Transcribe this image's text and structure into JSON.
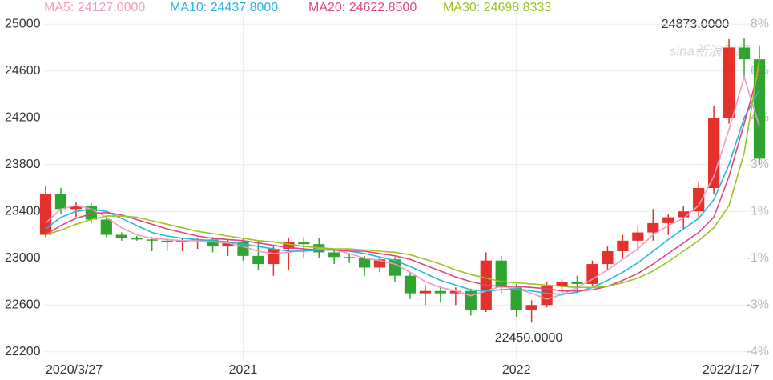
{
  "chart_data": {
    "type": "candlestick",
    "categories": [
      "2020/3/27",
      null,
      null,
      null,
      null,
      null,
      null,
      null,
      null,
      null,
      null,
      null,
      null,
      "2021",
      null,
      null,
      null,
      null,
      null,
      null,
      null,
      null,
      null,
      null,
      null,
      null,
      null,
      null,
      null,
      null,
      null,
      "2022",
      null,
      null,
      null,
      null,
      null,
      null,
      null,
      null,
      null,
      null,
      null,
      null,
      null,
      null,
      null,
      "2022/12/7"
    ],
    "open": [
      23200,
      23550,
      23420,
      23450,
      23330,
      23200,
      23170,
      23160,
      23150,
      23140,
      23150,
      23160,
      23100,
      23140,
      23020,
      22950,
      23080,
      23140,
      23120,
      23050,
      23010,
      23000,
      22920,
      22990,
      22850,
      22700,
      22720,
      22700,
      22720,
      22560,
      22980,
      22750,
      22560,
      22600,
      22760,
      22800,
      22780,
      22950,
      23060,
      23150,
      23220,
      23300,
      23350,
      23400,
      23600,
      24200,
      24800,
      24700
    ],
    "high": [
      23620,
      23600,
      23480,
      23470,
      23350,
      23220,
      23190,
      23180,
      23170,
      23170,
      23170,
      23180,
      23160,
      23170,
      23150,
      23100,
      23170,
      23180,
      23170,
      23080,
      23040,
      23020,
      23000,
      23010,
      22880,
      22760,
      22760,
      22750,
      22740,
      23050,
      23020,
      22780,
      22640,
      22800,
      22820,
      22850,
      22980,
      23100,
      23200,
      23280,
      23420,
      23380,
      23450,
      23650,
      24300,
      24873,
      24880,
      24820
    ],
    "low": [
      23180,
      23380,
      23350,
      23300,
      23180,
      23150,
      23150,
      23060,
      23060,
      23060,
      23080,
      23050,
      23020,
      22980,
      22900,
      22850,
      22900,
      23000,
      23000,
      22950,
      22960,
      22850,
      22880,
      22800,
      22650,
      22600,
      22620,
      22600,
      22510,
      22540,
      22700,
      22500,
      22450,
      22580,
      22680,
      22700,
      22760,
      22900,
      23000,
      23060,
      23150,
      23200,
      23250,
      23350,
      23550,
      24150,
      24550,
      23800
    ],
    "close": [
      23550,
      23420,
      23450,
      23330,
      23200,
      23170,
      23160,
      23150,
      23140,
      23150,
      23160,
      23100,
      23140,
      23020,
      22950,
      23080,
      23140,
      23120,
      23050,
      23010,
      23000,
      22920,
      22990,
      22850,
      22700,
      22720,
      22700,
      22720,
      22560,
      22980,
      22750,
      22560,
      22600,
      22760,
      22800,
      22780,
      22950,
      23060,
      23150,
      23220,
      23300,
      23350,
      23400,
      23600,
      24200,
      24800,
      24700,
      23850
    ],
    "up_color": "#e4312b",
    "down_color": "#2fa52f",
    "series": [
      {
        "name": "MA5: 24127.0000",
        "color": "#f29ac0",
        "values": [
          23300,
          23420,
          23450,
          23420,
          23350,
          23260,
          23200,
          23170,
          23160,
          23150,
          23150,
          23140,
          23130,
          23100,
          23060,
          23040,
          23050,
          23070,
          23080,
          23070,
          23040,
          23000,
          22980,
          22950,
          22880,
          22800,
          22750,
          22720,
          22680,
          22720,
          22760,
          22740,
          22700,
          22650,
          22690,
          22750,
          22820,
          22900,
          22990,
          23080,
          23200,
          23280,
          23340,
          23450,
          23700,
          24100,
          24550,
          24127
        ]
      },
      {
        "name": "MA10: 24437.8000",
        "color": "#2bb6d8",
        "values": [
          23250,
          23350,
          23400,
          23420,
          23400,
          23340,
          23280,
          23220,
          23190,
          23170,
          23160,
          23150,
          23140,
          23120,
          23100,
          23080,
          23060,
          23060,
          23070,
          23070,
          23060,
          23040,
          23010,
          22980,
          22930,
          22870,
          22810,
          22770,
          22730,
          22720,
          22730,
          22740,
          22720,
          22700,
          22690,
          22710,
          22750,
          22810,
          22880,
          22960,
          23060,
          23160,
          23250,
          23340,
          23500,
          23800,
          24200,
          24437.8
        ]
      },
      {
        "name": "MA20: 24622.8500",
        "color": "#e0467f",
        "values": [
          23200,
          23280,
          23340,
          23380,
          23390,
          23370,
          23330,
          23290,
          23250,
          23220,
          23190,
          23170,
          23160,
          23150,
          23130,
          23110,
          23090,
          23080,
          23070,
          23070,
          23060,
          23060,
          23040,
          23020,
          22990,
          22940,
          22890,
          22840,
          22800,
          22770,
          22760,
          22760,
          22750,
          22740,
          22720,
          22720,
          22730,
          22760,
          22810,
          22870,
          22950,
          23040,
          23130,
          23220,
          23350,
          23700,
          24150,
          24622.85
        ]
      },
      {
        "name": "MA30: 24698.8333",
        "color": "#9ac421",
        "values": [
          23200,
          23240,
          23290,
          23330,
          23360,
          23360,
          23350,
          23320,
          23290,
          23260,
          23230,
          23210,
          23190,
          23170,
          23150,
          23140,
          23120,
          23100,
          23090,
          23080,
          23080,
          23070,
          23060,
          23050,
          23030,
          22990,
          22950,
          22900,
          22860,
          22830,
          22800,
          22790,
          22780,
          22770,
          22760,
          22750,
          22750,
          22760,
          22790,
          22830,
          22890,
          22970,
          23060,
          23150,
          23260,
          23450,
          23900,
          24698.83
        ]
      }
    ],
    "ylim": [
      22130,
      25070
    ],
    "yticks": [
      22200,
      22600,
      23000,
      23400,
      23800,
      24200,
      24600,
      25000
    ],
    "right_axis_labels": [
      "-4%",
      "-3%",
      "-1%",
      "1%",
      "3%",
      "4%",
      "6%",
      "8%"
    ],
    "grid": true,
    "max_label": "24873.0000",
    "min_label": "22450.0000",
    "watermark": "sina新浪财经"
  }
}
